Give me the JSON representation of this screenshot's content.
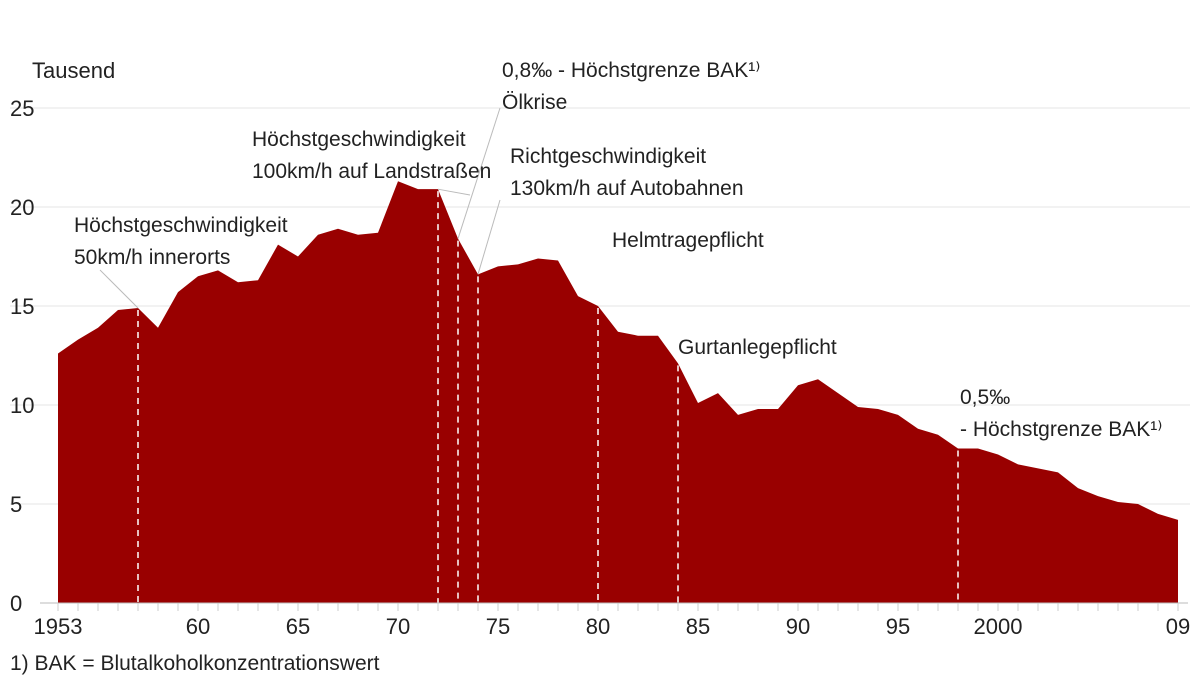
{
  "chart_data": {
    "type": "area",
    "unit_label": "Tausend",
    "color": "#990000",
    "grid": true,
    "ylim": [
      0,
      25
    ],
    "yticks": [
      0,
      5,
      10,
      15,
      20,
      25
    ],
    "xlim": [
      1953,
      2009
    ],
    "xtick_labels": [
      {
        "year": 1953,
        "label": "1953"
      },
      {
        "year": 1960,
        "label": "60"
      },
      {
        "year": 1965,
        "label": "65"
      },
      {
        "year": 1970,
        "label": "70"
      },
      {
        "year": 1975,
        "label": "75"
      },
      {
        "year": 1980,
        "label": "80"
      },
      {
        "year": 1985,
        "label": "85"
      },
      {
        "year": 1990,
        "label": "90"
      },
      {
        "year": 1995,
        "label": "95"
      },
      {
        "year": 2000,
        "label": "2000"
      },
      {
        "year": 2009,
        "label": "09"
      }
    ],
    "x": [
      1953,
      1954,
      1955,
      1956,
      1957,
      1958,
      1959,
      1960,
      1961,
      1962,
      1963,
      1964,
      1965,
      1966,
      1967,
      1968,
      1969,
      1970,
      1971,
      1972,
      1973,
      1974,
      1975,
      1976,
      1977,
      1978,
      1979,
      1980,
      1981,
      1982,
      1983,
      1984,
      1985,
      1986,
      1987,
      1988,
      1989,
      1990,
      1991,
      1992,
      1993,
      1994,
      1995,
      1996,
      1997,
      1998,
      1999,
      2000,
      2001,
      2002,
      2003,
      2004,
      2005,
      2006,
      2007,
      2008,
      2009
    ],
    "values": [
      12.6,
      13.3,
      13.9,
      14.8,
      14.9,
      13.9,
      15.7,
      16.5,
      16.8,
      16.2,
      16.3,
      18.1,
      17.5,
      18.6,
      18.9,
      18.6,
      18.7,
      21.3,
      20.9,
      20.9,
      18.4,
      16.6,
      17.0,
      17.1,
      17.4,
      17.3,
      15.5,
      15.0,
      13.7,
      13.5,
      13.5,
      12.1,
      10.1,
      10.6,
      9.5,
      9.8,
      9.8,
      11.0,
      11.3,
      10.6,
      9.9,
      9.8,
      9.5,
      8.8,
      8.5,
      7.8,
      7.8,
      7.5,
      7.0,
      6.8,
      6.6,
      5.8,
      5.4,
      5.1,
      5.0,
      4.5,
      4.2
    ],
    "annotations": [
      {
        "year": 1957,
        "lines": [
          "Höchstgeschwindigkeit",
          "50km/h innerorts"
        ]
      },
      {
        "year": 1972,
        "lines": [
          "Höchstgeschwindigkeit",
          "100km/h auf Landstraßen"
        ]
      },
      {
        "year": 1973,
        "lines": [
          "0,8‰ - Höchstgrenze BAK¹⁾",
          "Ölkrise"
        ]
      },
      {
        "year": 1974,
        "lines": [
          "Richtgeschwindigkeit",
          "130km/h auf Autobahnen"
        ]
      },
      {
        "year": 1980,
        "lines": [
          "Helmtragepflicht"
        ]
      },
      {
        "year": 1984,
        "lines": [
          "Gurtanlegepflicht"
        ]
      },
      {
        "year": 1998,
        "lines": [
          "0,5‰",
          "- Höchstgrenze BAK¹⁾"
        ]
      }
    ],
    "footnote": "1) BAK = Blutalkoholkonzentrationswert"
  }
}
